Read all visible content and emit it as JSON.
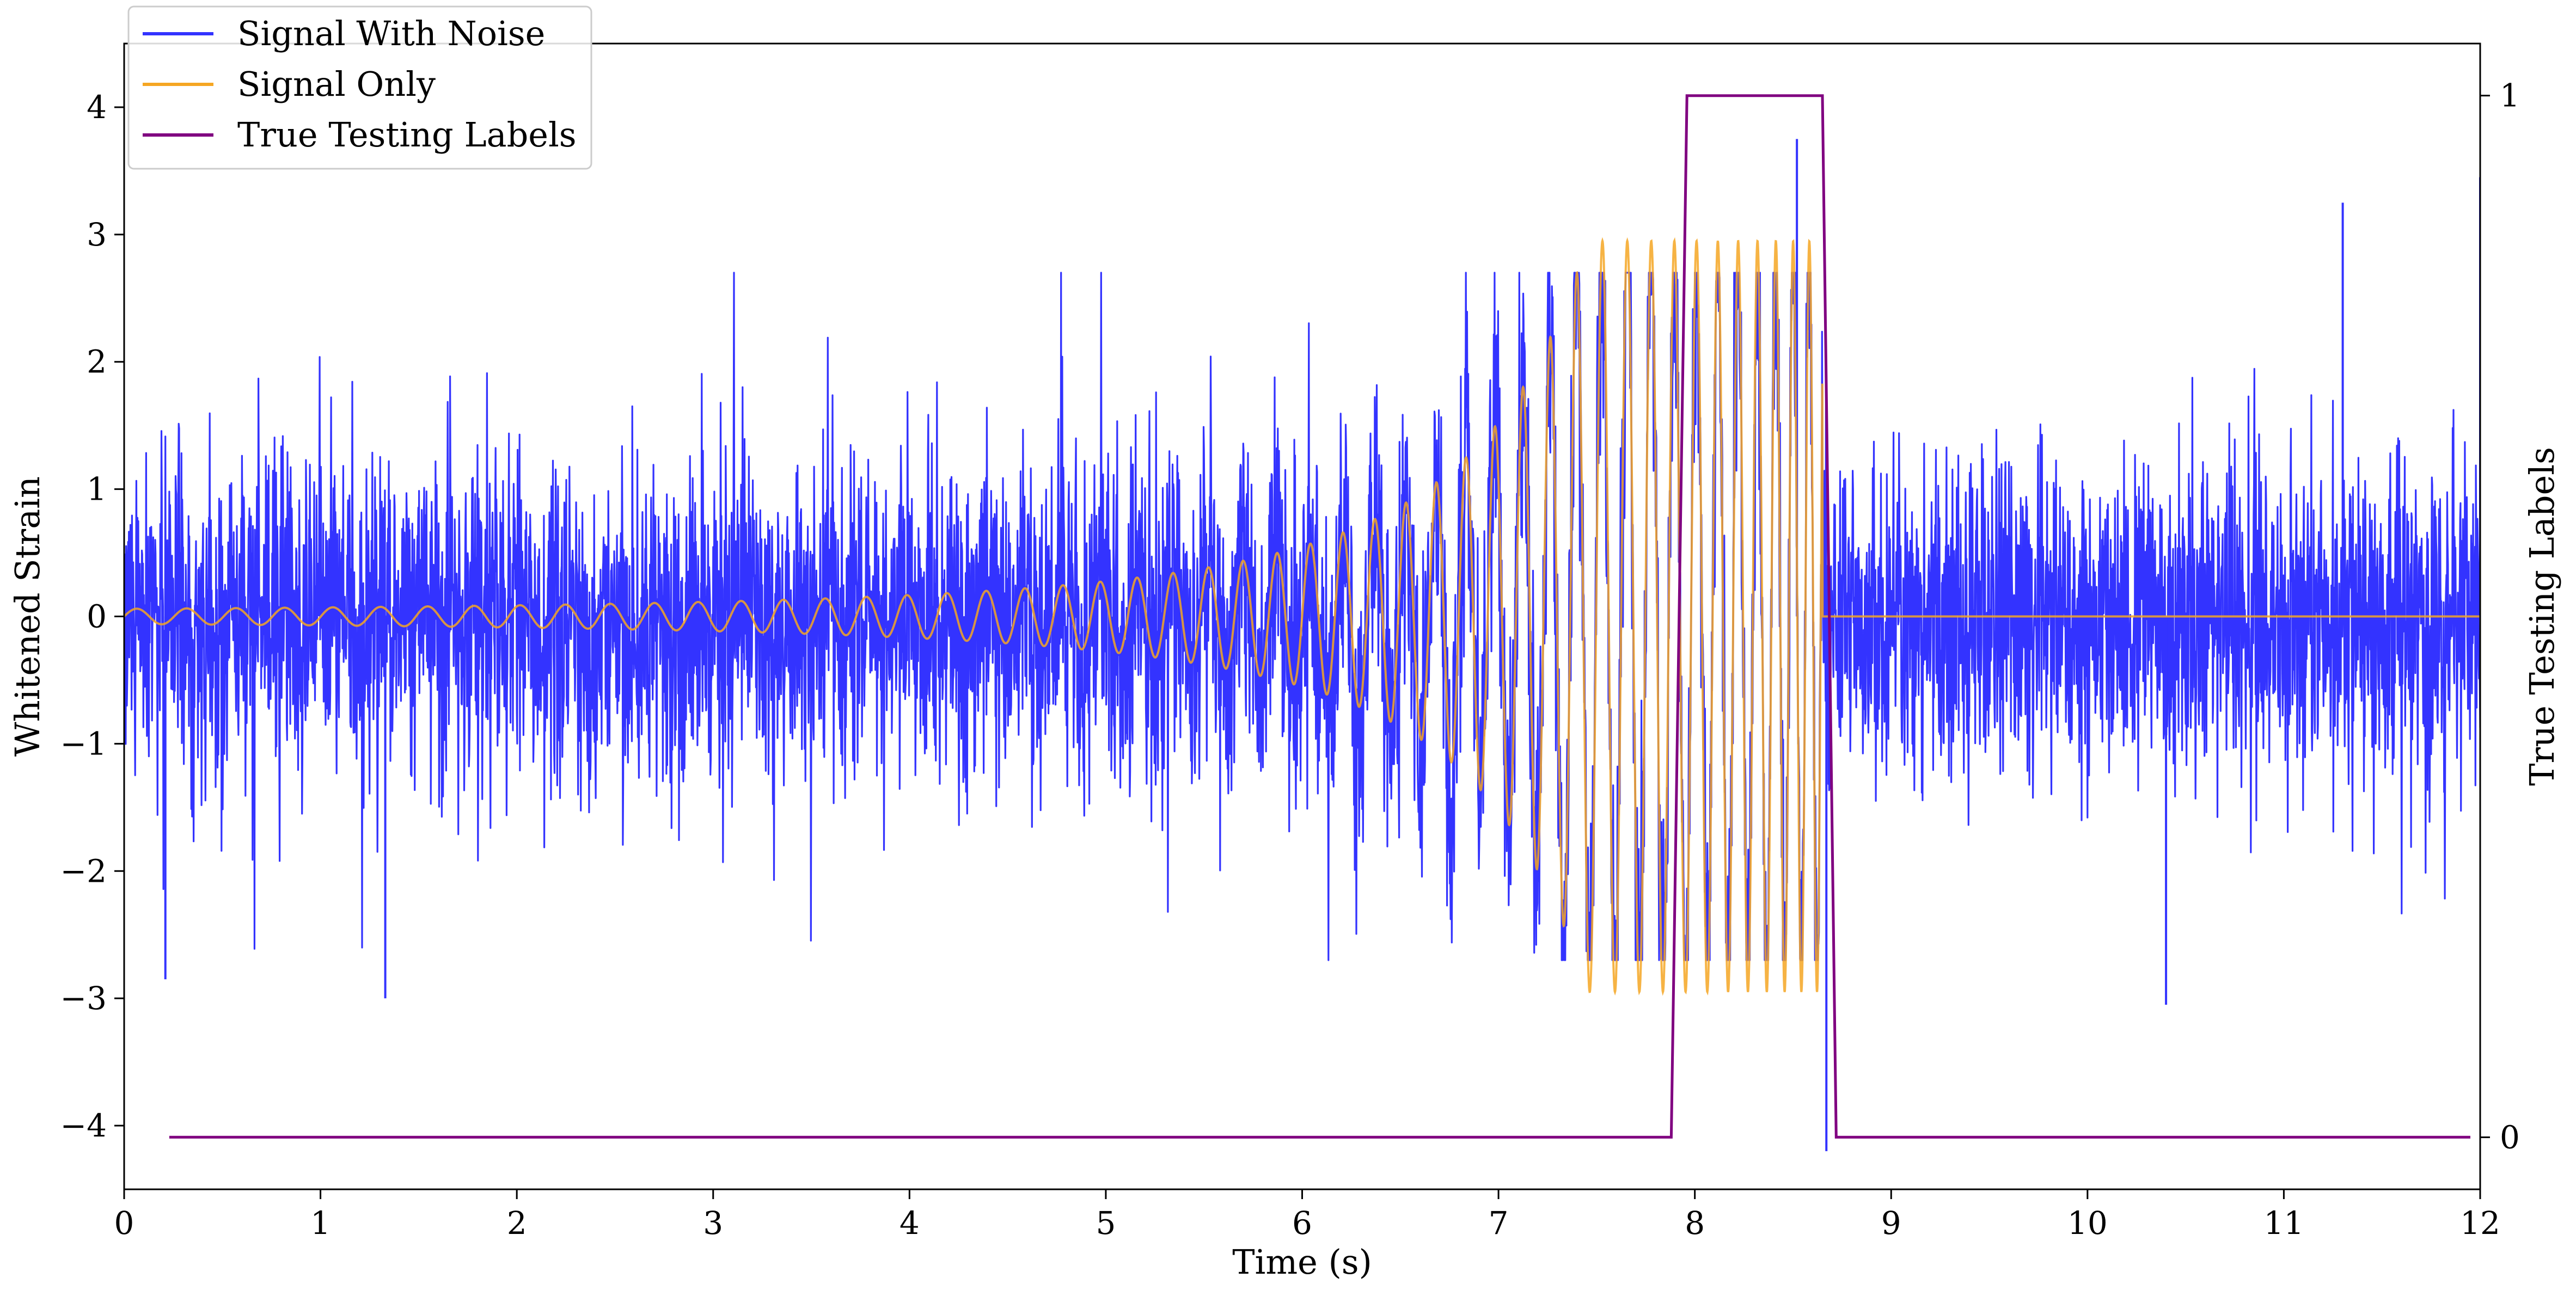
{
  "chart_data": {
    "type": "line",
    "title": "",
    "xlabel": "Time (s)",
    "ylabel": "Whitened Strain",
    "y2label": "True Testing Labels",
    "xlim": [
      0,
      12
    ],
    "ylim": [
      -4.5,
      4.5
    ],
    "y2lim": [
      -0.05,
      1.05
    ],
    "grid": false,
    "legend_position": "top-left",
    "x_ticks": [
      "0",
      "1",
      "2",
      "3",
      "4",
      "5",
      "6",
      "7",
      "8",
      "9",
      "10",
      "11",
      "12"
    ],
    "y_ticks": [
      "−4",
      "−3",
      "−2",
      "−1",
      "0",
      "1",
      "2",
      "3",
      "4"
    ],
    "y2_ticks": [
      "0",
      "1"
    ],
    "series": [
      {
        "name": "Signal With Noise",
        "color": "#3333ff",
        "axis": "left",
        "description_stats": {
          "typical_abs_max": 1.5,
          "extremes": [
            [
              0.21,
              -2.85
            ],
            [
              1.33,
              -3.0
            ],
            [
              8.52,
              3.75
            ],
            [
              8.67,
              -4.2
            ],
            [
              11.3,
              3.25
            ],
            [
              12.0,
              3.45
            ],
            [
              10.4,
              -3.05
            ]
          ]
        }
      },
      {
        "name": "Signal Only",
        "color": "#f5a623",
        "axis": "left",
        "chirp": {
          "start_time": 0.0,
          "merger_time": 8.65,
          "amplitude_start": 0.03,
          "amplitude_peak": 2.95
        }
      },
      {
        "name": "True Testing Labels",
        "color": "#800080",
        "axis": "right",
        "points": [
          [
            0.23,
            0
          ],
          [
            7.88,
            0
          ],
          [
            7.96,
            1
          ],
          [
            8.65,
            1
          ],
          [
            8.72,
            0
          ],
          [
            11.95,
            0
          ]
        ]
      }
    ]
  }
}
